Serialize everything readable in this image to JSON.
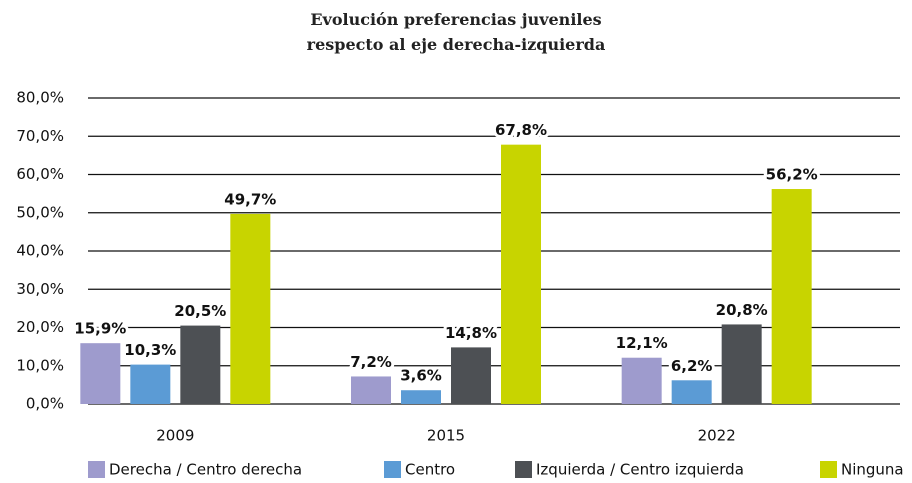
{
  "chart_data": {
    "type": "bar",
    "title": "Evolución preferencias juveniles respecto al eje derecha-izquierda",
    "categories": [
      "2009",
      "2015",
      "2022"
    ],
    "series": [
      {
        "name": "Derecha / Centro derecha",
        "color": "#9e9bcd",
        "values": [
          15.9,
          7.2,
          12.1
        ],
        "value_labels": [
          "15,9%",
          "7,2%",
          "12,1%"
        ]
      },
      {
        "name": "Centro",
        "color": "#5b9bd5",
        "values": [
          10.3,
          3.6,
          6.2
        ],
        "value_labels": [
          "10,3%",
          "3,6%",
          "6,2%"
        ]
      },
      {
        "name": "Izquierda / Centro izquierda",
        "color": "#4d5054",
        "values": [
          20.5,
          14.8,
          20.8
        ],
        "value_labels": [
          "20,5%",
          "14,8%",
          "20,8%"
        ]
      },
      {
        "name": "Ninguna",
        "color": "#c8d400",
        "values": [
          49.7,
          67.8,
          56.2
        ],
        "value_labels": [
          "49,7%",
          "67,8%",
          "56,2%"
        ]
      }
    ],
    "ylim": [
      0,
      80
    ],
    "yticks": [
      {
        "value": 0,
        "label": "0,0%"
      },
      {
        "value": 10,
        "label": "10,0%"
      },
      {
        "value": 20,
        "label": "20,0%"
      },
      {
        "value": 30,
        "label": "30,0%"
      },
      {
        "value": 40,
        "label": "40,0%"
      },
      {
        "value": 50,
        "label": "50,0%"
      },
      {
        "value": 60,
        "label": "60,0%"
      },
      {
        "value": 70,
        "label": "70,0%"
      },
      {
        "value": 80,
        "label": "80,0%"
      }
    ],
    "grid": true,
    "legend": "bottom"
  }
}
